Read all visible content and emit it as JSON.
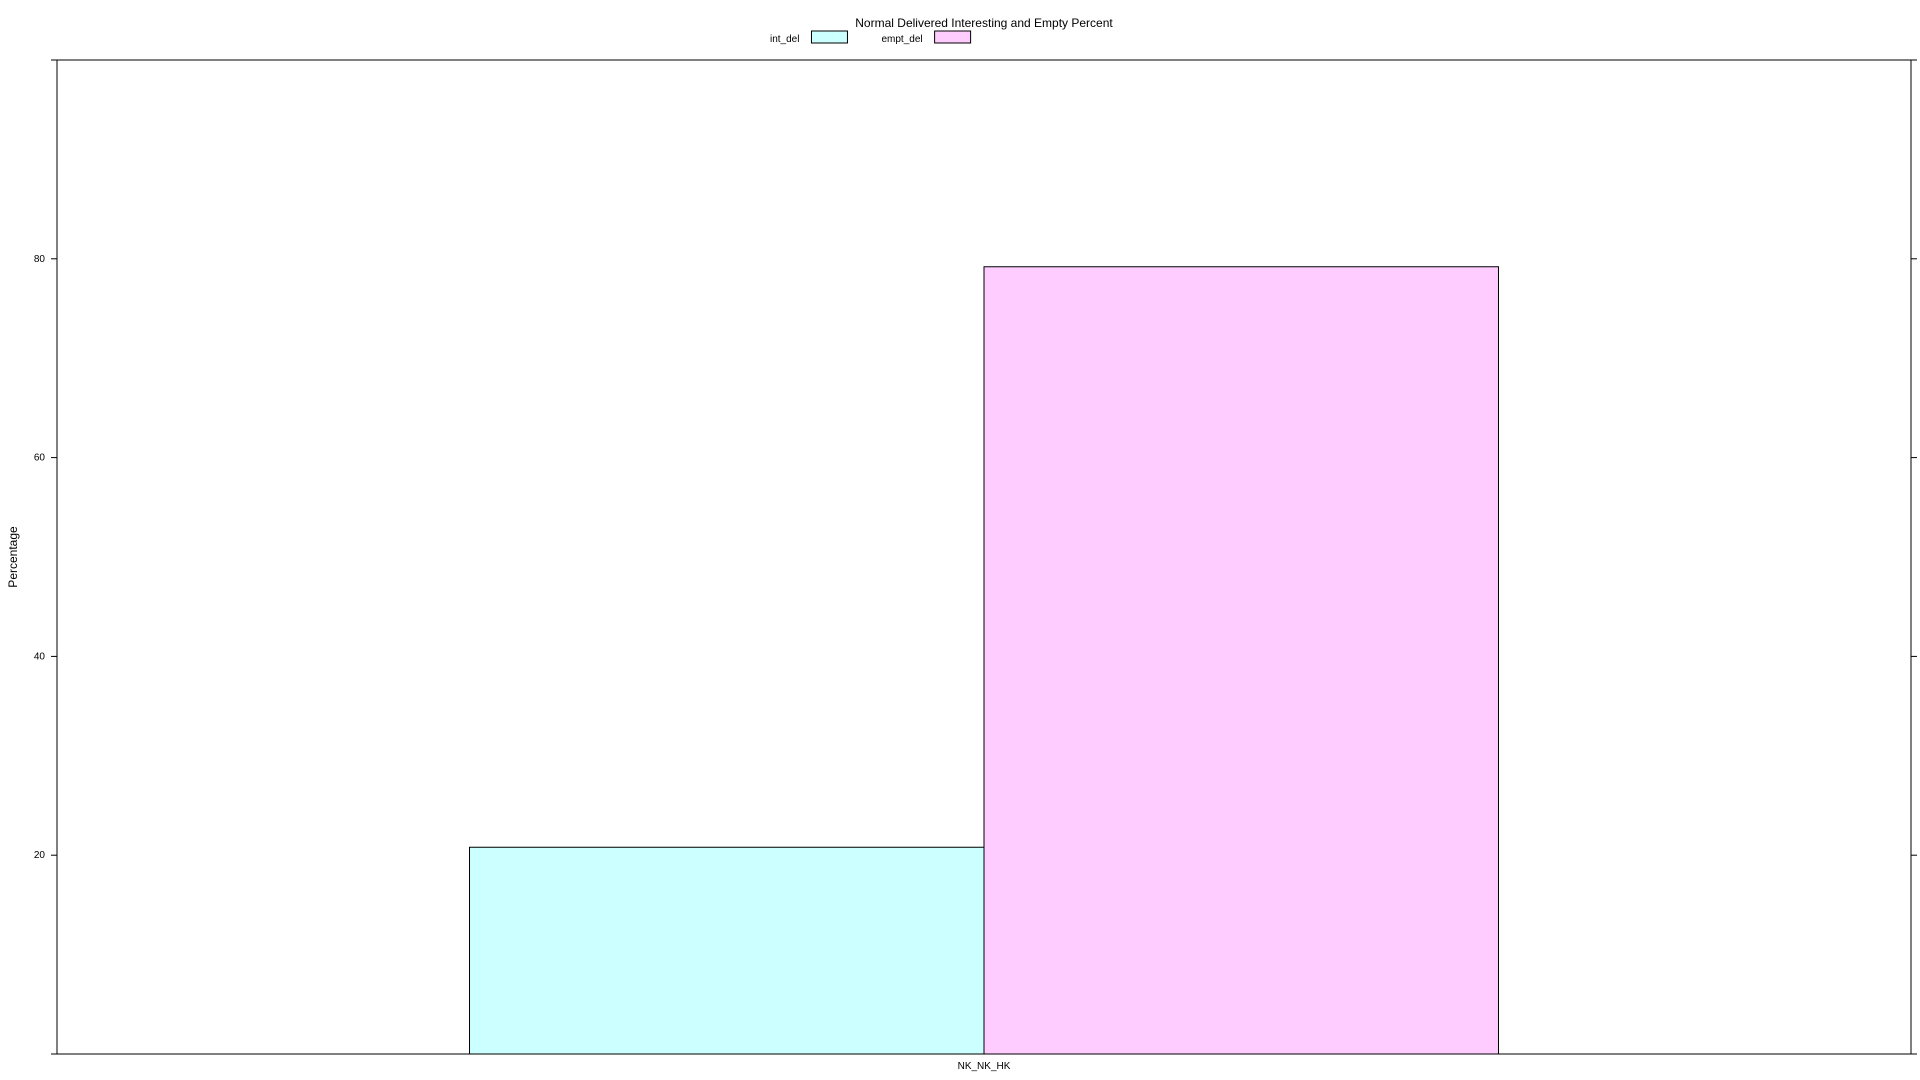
{
  "chart_data": {
    "type": "bar",
    "title": "Normal Delivered Interesting and Empty Percent",
    "xlabel": "",
    "ylabel": "Percentage",
    "categories": [
      "NK_NK_HK"
    ],
    "series": [
      {
        "name": "int_del",
        "values": [
          20.8
        ],
        "color": "#ccffff"
      },
      {
        "name": "empt_del",
        "values": [
          79.2
        ],
        "color": "#ffccff"
      }
    ],
    "ylim": [
      0,
      100
    ],
    "yticks": [
      20,
      40,
      60,
      80
    ],
    "grid": false,
    "legend_position": "top"
  }
}
